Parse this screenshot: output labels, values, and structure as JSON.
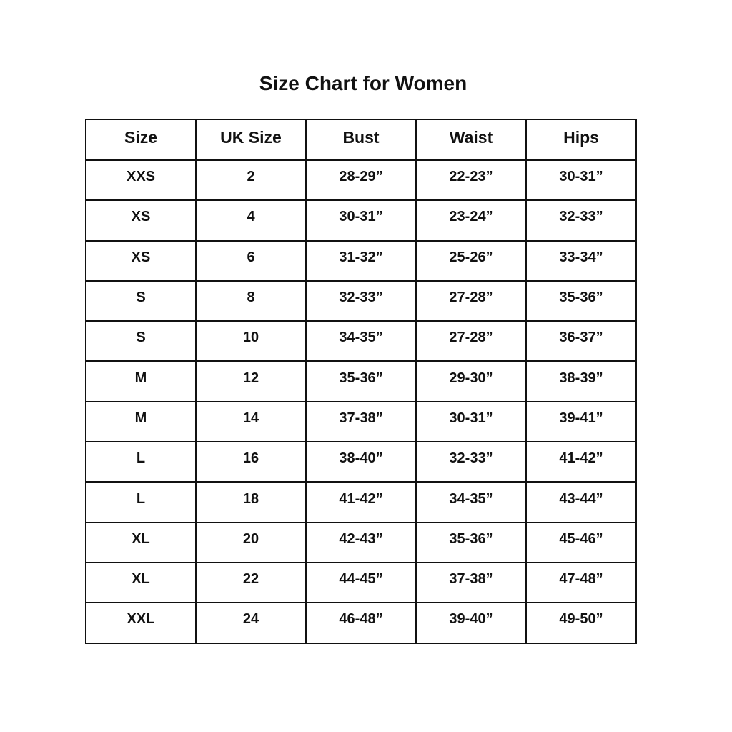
{
  "title": "Size Chart for Women",
  "table": {
    "headers": [
      "Size",
      "UK Size",
      "Bust",
      "Waist",
      "Hips"
    ],
    "rows": [
      [
        "XXS",
        "2",
        "28-29”",
        "22-23”",
        "30-31”"
      ],
      [
        "XS",
        "4",
        "30-31”",
        "23-24”",
        "32-33”"
      ],
      [
        "XS",
        "6",
        "31-32”",
        "25-26”",
        "33-34”"
      ],
      [
        "S",
        "8",
        "32-33”",
        "27-28”",
        "35-36”"
      ],
      [
        "S",
        "10",
        "34-35”",
        "27-28”",
        "36-37”"
      ],
      [
        "M",
        "12",
        "35-36”",
        "29-30”",
        "38-39”"
      ],
      [
        "M",
        "14",
        "37-38”",
        "30-31”",
        "39-41”"
      ],
      [
        "L",
        "16",
        "38-40”",
        "32-33”",
        "41-42”"
      ],
      [
        "L",
        "18",
        "41-42”",
        "34-35”",
        "43-44”"
      ],
      [
        "XL",
        "20",
        "42-43”",
        "35-36”",
        "45-46”"
      ],
      [
        "XL",
        "22",
        "44-45”",
        "37-38”",
        "47-48”"
      ],
      [
        "XXL",
        "24",
        "46-48”",
        "39-40”",
        "49-50”"
      ]
    ]
  }
}
